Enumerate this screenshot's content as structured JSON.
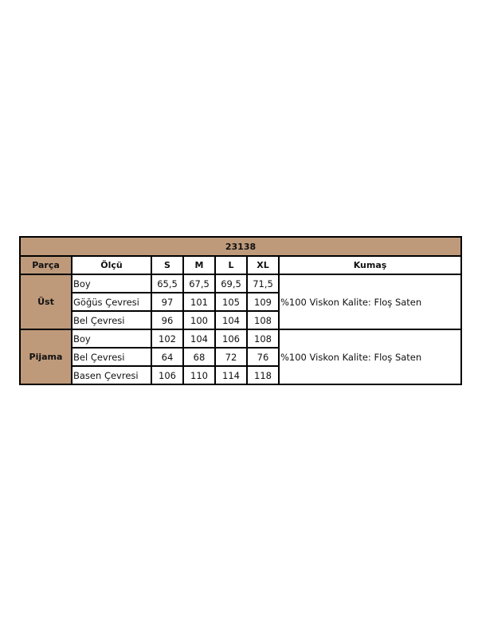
{
  "title": "23138",
  "header_color": "#be9a7a",
  "headers": [
    "Parça",
    "Ölçü",
    "S",
    "M",
    "L",
    "XL",
    "Kumaş"
  ],
  "groups": [
    {
      "name": "Üst",
      "fabric": "%100 Viskon  Kalite: Floş Saten",
      "rows": [
        {
          "label": "Boy",
          "values": [
            "65,5",
            "67,5",
            "69,5",
            "71,5"
          ]
        },
        {
          "label": "Göğüs Çevresi",
          "values": [
            "97",
            "101",
            "105",
            "109"
          ]
        },
        {
          "label": "Bel Çevresi",
          "values": [
            "96",
            "100",
            "104",
            "108"
          ]
        }
      ]
    },
    {
      "name": "Pijama",
      "fabric": "%100 Viskon  Kalite: Floş Saten",
      "rows": [
        {
          "label": "Boy",
          "values": [
            "102",
            "104",
            "106",
            "108"
          ]
        },
        {
          "label": "Bel Çevresi",
          "values": [
            "64",
            "68",
            "72",
            "76"
          ]
        },
        {
          "label": "Basen Çevresi",
          "values": [
            "106",
            "110",
            "114",
            "118"
          ]
        }
      ]
    }
  ]
}
